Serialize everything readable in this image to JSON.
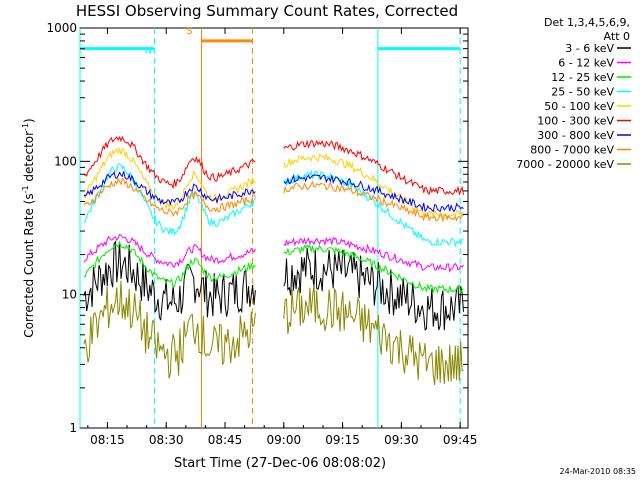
{
  "chart_data": {
    "type": "line",
    "title": "HESSI Observing Summary Count Rates, Corrected",
    "xlabel": "Start Time (27-Dec-06 08:08:02)",
    "ylabel_main": "Corrected Count Rate (s",
    "ylabel_sup1": "-1",
    "ylabel_mid": " detector",
    "ylabel_sup2": "-1",
    "ylabel_end": ")",
    "y_scale": "log",
    "ylim": [
      1,
      1000
    ],
    "xlim": [
      "08:08",
      "09:47"
    ],
    "x_ticks": [
      "08:15",
      "08:30",
      "08:45",
      "09:00",
      "09:15",
      "09:30",
      "09:45"
    ],
    "y_ticks": [
      "1",
      "10",
      "100",
      "1000"
    ],
    "legend_title": [
      "Det 1,3,4,5,6,9,",
      "Att 0"
    ],
    "timestamp": "24-Mar-2010 08:35",
    "gap": {
      "start": "08:53",
      "end": "09:00"
    },
    "series": [
      {
        "name": "3 - 6 keV",
        "color": "#000000",
        "base": 8,
        "peak": 17
      },
      {
        "name": "6 - 12 keV",
        "color": "#ff00ff",
        "base": 16,
        "peak": 27
      },
      {
        "name": "12 - 25 keV",
        "color": "#00ee00",
        "base": 11,
        "peak": 24
      },
      {
        "name": "25 - 50 keV",
        "color": "#00ffff",
        "base": 25,
        "peak": 90
      },
      {
        "name": "50 - 100 keV",
        "color": "#ffd000",
        "base": 40,
        "peak": 120
      },
      {
        "name": "100 - 300 keV",
        "color": "#ff0000",
        "base": 60,
        "peak": 150
      },
      {
        "name": "300 - 800 keV",
        "color": "#0000ff",
        "base": 45,
        "peak": 80
      },
      {
        "name": "800 - 7000 keV",
        "color": "#ff8800",
        "base": 38,
        "peak": 70
      },
      {
        "name": "7000 - 20000 keV",
        "color": "#888800",
        "base": 3,
        "peak": 9
      }
    ],
    "annotations": [
      {
        "label": "N",
        "color": "#00ffff",
        "start": "08:08",
        "end": "08:27",
        "level": 700
      },
      {
        "label": "S",
        "color": "#ff8800",
        "start": "08:39",
        "end": "08:52",
        "level": 800
      },
      {
        "label": "",
        "color": "#00ffff",
        "start": "09:24",
        "end": "09:45",
        "level": 700
      }
    ],
    "grid": false,
    "legend": "right"
  },
  "colors": {
    "background": "#ffffff",
    "axes": "#000000"
  }
}
